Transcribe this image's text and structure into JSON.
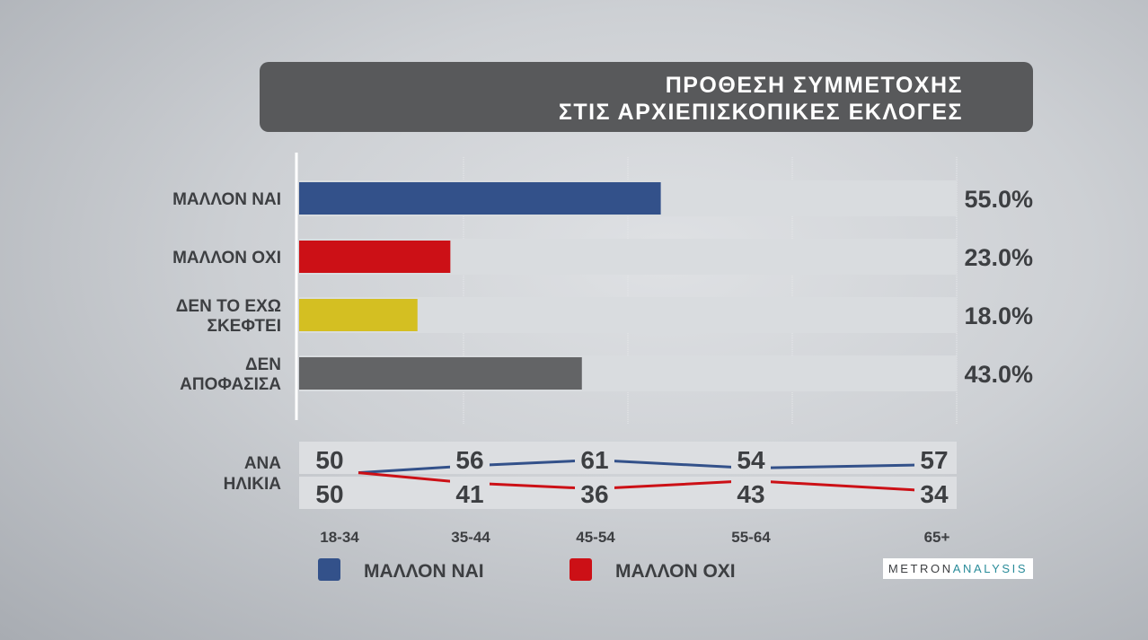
{
  "title": {
    "line1": "ΠΡΟΘΕΣΗ ΣΥΜΜΕΤΟΧΗΣ",
    "line2": "ΣΤΙΣ ΑΡΧΙΕΠΙΣΚΟΠΙΚΕΣ ΕΚΛΟΓΕΣ"
  },
  "chart_data": [
    {
      "type": "bar",
      "orientation": "horizontal",
      "categories": [
        [
          "ΜΑΛΛΟΝ ΝΑΙ"
        ],
        [
          "ΜΑΛΛΟΝ ΟΧΙ"
        ],
        [
          "ΔΕΝ ΤΟ ΕΧΩ",
          "ΣΚΕΦΤΕΙ"
        ],
        [
          "ΔΕΝ",
          "ΑΠΟΦΑΣΙΣΑ"
        ]
      ],
      "values": [
        55.0,
        23.0,
        18.0,
        43.0
      ],
      "value_labels": [
        "55.0%",
        "23.0%",
        "18.0%",
        "43.0%"
      ],
      "colors": [
        "#33518a",
        "#cc1016",
        "#d4bf22",
        "#636466"
      ],
      "xlim": [
        0,
        100
      ],
      "grid": true
    },
    {
      "type": "line",
      "label": [
        "ΑΝΑ",
        "ΗΛΙΚΙΑ"
      ],
      "categories": [
        "18-34",
        "35-44",
        "45-54",
        "55-64",
        "65+"
      ],
      "series": [
        {
          "name": "ΜΑΛΛΟΝ ΝΑΙ",
          "color": "#33518a",
          "values": [
            50,
            56,
            61,
            54,
            57
          ]
        },
        {
          "name": "ΜΑΛΛΟΝ ΟΧΙ",
          "color": "#cc1016",
          "values": [
            50,
            41,
            36,
            43,
            34
          ]
        }
      ],
      "legend": "bottom"
    }
  ],
  "logo": {
    "part1": "METRON",
    "part2": "ANALYSIS"
  }
}
